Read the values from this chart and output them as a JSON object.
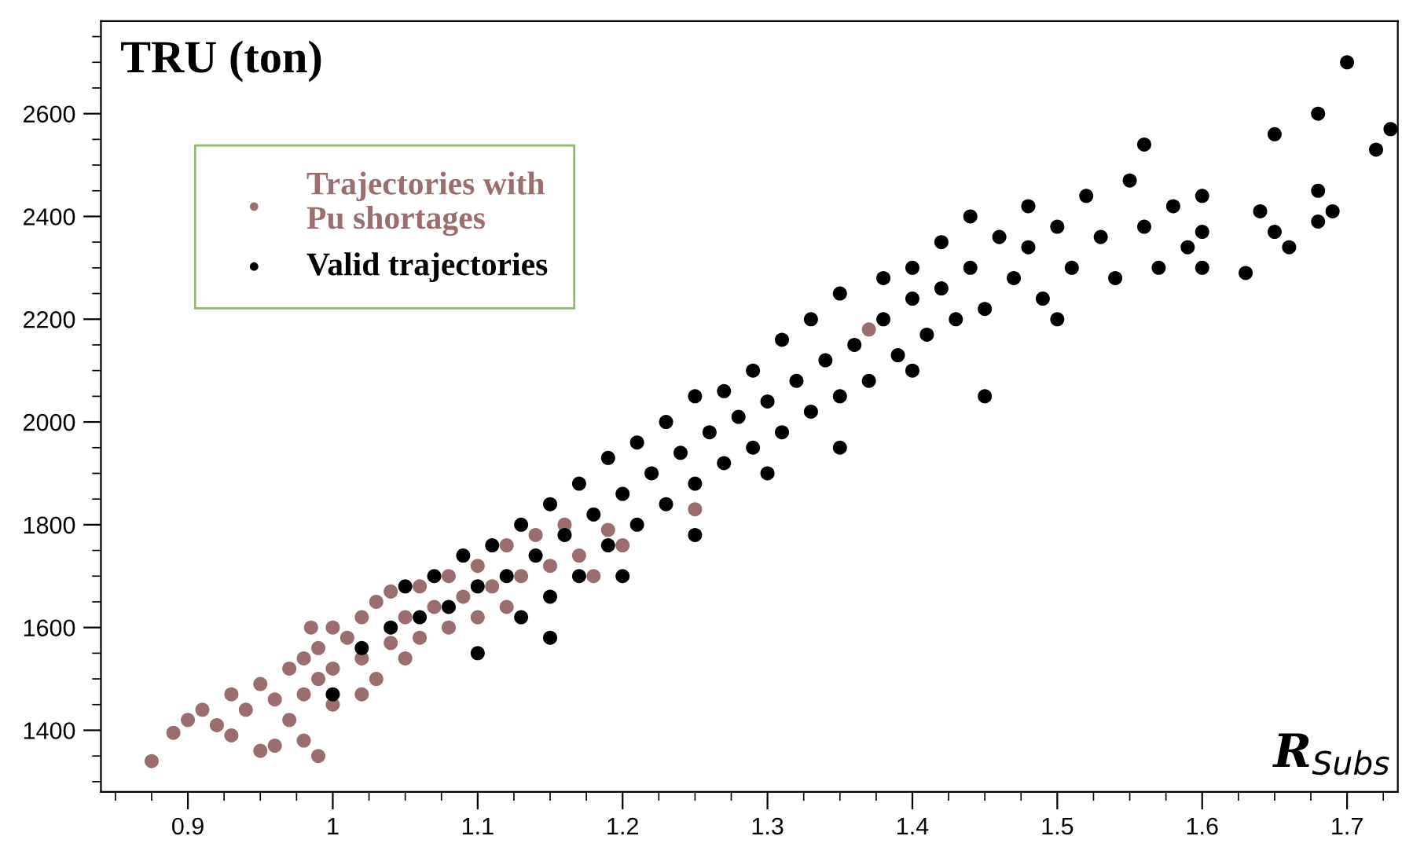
{
  "chart_data": {
    "type": "scatter",
    "title": "TRU (ton)",
    "xlabel": "R$_{Subs}$",
    "xlim": [
      0.84,
      1.735
    ],
    "ylim": [
      1280,
      2780
    ],
    "xticks": [
      0.9,
      1,
      1.1,
      1.2,
      1.3,
      1.4,
      1.5,
      1.6,
      1.7
    ],
    "yticks": [
      1400,
      1600,
      1800,
      2000,
      2200,
      2400,
      2600
    ],
    "legend": "top left",
    "marker": "circle",
    "grid": false,
    "series": [
      {
        "name": "Trajectories with\nPu shortages",
        "color": "#9a6e6e",
        "x": [
          0.875,
          0.89,
          0.9,
          0.91,
          0.92,
          0.93,
          0.93,
          0.94,
          0.95,
          0.95,
          0.96,
          0.96,
          0.97,
          0.97,
          0.98,
          0.98,
          0.98,
          0.99,
          0.99,
          1.0,
          1.0,
          1.0,
          1.01,
          1.02,
          1.02,
          1.03,
          1.03,
          1.04,
          1.05,
          1.05,
          1.06,
          1.06,
          1.07,
          1.08,
          1.08,
          1.09,
          1.1,
          1.1,
          1.11,
          1.12,
          1.12,
          1.13,
          1.14,
          1.15,
          1.16,
          1.17,
          1.18,
          1.19,
          1.2,
          1.25,
          1.37,
          0.985,
          0.99,
          1.04,
          1.02
        ],
        "values": [
          1340,
          1395,
          1420,
          1440,
          1410,
          1470,
          1390,
          1440,
          1490,
          1360,
          1460,
          1370,
          1520,
          1420,
          1540,
          1470,
          1380,
          1500,
          1560,
          1600,
          1520,
          1450,
          1580,
          1620,
          1540,
          1500,
          1650,
          1570,
          1620,
          1540,
          1680,
          1580,
          1640,
          1700,
          1600,
          1660,
          1720,
          1620,
          1680,
          1760,
          1640,
          1700,
          1780,
          1720,
          1800,
          1740,
          1700,
          1790,
          1760,
          1830,
          2180,
          1600,
          1350,
          1670,
          1470
        ]
      },
      {
        "name": "Valid trajectories",
        "color": "#000000",
        "x": [
          1.0,
          1.02,
          1.04,
          1.05,
          1.06,
          1.07,
          1.08,
          1.09,
          1.1,
          1.11,
          1.12,
          1.13,
          1.13,
          1.14,
          1.15,
          1.15,
          1.16,
          1.17,
          1.17,
          1.18,
          1.19,
          1.19,
          1.2,
          1.21,
          1.21,
          1.22,
          1.23,
          1.23,
          1.24,
          1.25,
          1.25,
          1.26,
          1.27,
          1.27,
          1.28,
          1.29,
          1.29,
          1.3,
          1.31,
          1.31,
          1.32,
          1.33,
          1.33,
          1.34,
          1.35,
          1.35,
          1.36,
          1.37,
          1.38,
          1.38,
          1.39,
          1.4,
          1.4,
          1.41,
          1.42,
          1.42,
          1.43,
          1.44,
          1.44,
          1.45,
          1.46,
          1.47,
          1.48,
          1.48,
          1.49,
          1.5,
          1.51,
          1.52,
          1.53,
          1.54,
          1.55,
          1.56,
          1.56,
          1.57,
          1.58,
          1.59,
          1.6,
          1.6,
          1.63,
          1.64,
          1.65,
          1.65,
          1.66,
          1.68,
          1.68,
          1.68,
          1.69,
          1.7,
          1.72,
          1.73,
          1.15,
          1.1,
          1.2,
          1.3,
          1.4,
          1.5,
          1.6,
          1.45,
          1.35,
          1.25
        ],
        "values": [
          1470,
          1560,
          1600,
          1680,
          1620,
          1700,
          1640,
          1740,
          1680,
          1760,
          1700,
          1620,
          1800,
          1740,
          1660,
          1840,
          1780,
          1700,
          1880,
          1820,
          1760,
          1930,
          1860,
          1800,
          1960,
          1900,
          1840,
          2000,
          1940,
          1880,
          2050,
          1980,
          1920,
          2060,
          2010,
          1950,
          2100,
          2040,
          1980,
          2160,
          2080,
          2020,
          2200,
          2120,
          2050,
          2250,
          2150,
          2080,
          2280,
          2200,
          2130,
          2300,
          2240,
          2170,
          2350,
          2260,
          2200,
          2400,
          2300,
          2220,
          2360,
          2280,
          2420,
          2340,
          2240,
          2380,
          2300,
          2440,
          2360,
          2280,
          2470,
          2540,
          2380,
          2300,
          2420,
          2340,
          2440,
          2370,
          2290,
          2410,
          2560,
          2370,
          2340,
          2600,
          2450,
          2390,
          2410,
          2700,
          2530,
          2570,
          1580,
          1550,
          1700,
          1900,
          2100,
          2200,
          2300,
          2050,
          1950,
          1780
        ]
      }
    ]
  }
}
